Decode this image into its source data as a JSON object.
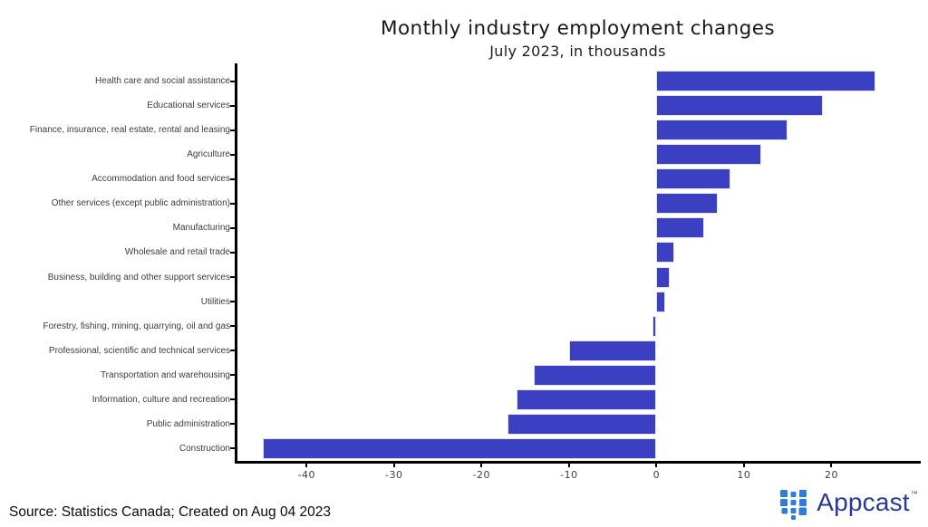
{
  "footer": {
    "source": "Source: Statistics Canada; Created on Aug 04 2023"
  },
  "logo": {
    "name": "appcast-logo",
    "text": "Appcast",
    "tm": "™",
    "mark_color": "#2e7ce0",
    "text_color": "#2b3a94"
  },
  "chart_data": {
    "type": "bar",
    "orientation": "horizontal",
    "title": "Monthly industry employment changes",
    "subtitle": "July 2023, in thousands",
    "xlabel": "",
    "ylabel": "",
    "categories": [
      "Health care and social assistance",
      "Educational services",
      "Finance, insurance, real estate, rental and leasing",
      "Agriculture",
      "Accommodation and food services",
      "Other services (except public administration)",
      "Manufacturing",
      "Wholesale and retail trade",
      "Business, building and other support services",
      "Utilities",
      "Forestry, fishing, mining, quarrying, oil and gas",
      "Professional, scientific and technical services",
      "Transportation and warehousing",
      "Information, culture and recreation",
      "Public administration",
      "Construction"
    ],
    "values": [
      25,
      19,
      15,
      12,
      8.5,
      7,
      5.5,
      2,
      1.5,
      1,
      -0.5,
      -10,
      -14,
      -16,
      -17,
      -45
    ],
    "xlim": [
      -48,
      30
    ],
    "x_ticks": [
      -40,
      -30,
      -20,
      -10,
      0,
      10,
      20
    ],
    "bar_color": "#3b40c3",
    "grid": false,
    "legend": null,
    "background": "#ffffff"
  }
}
